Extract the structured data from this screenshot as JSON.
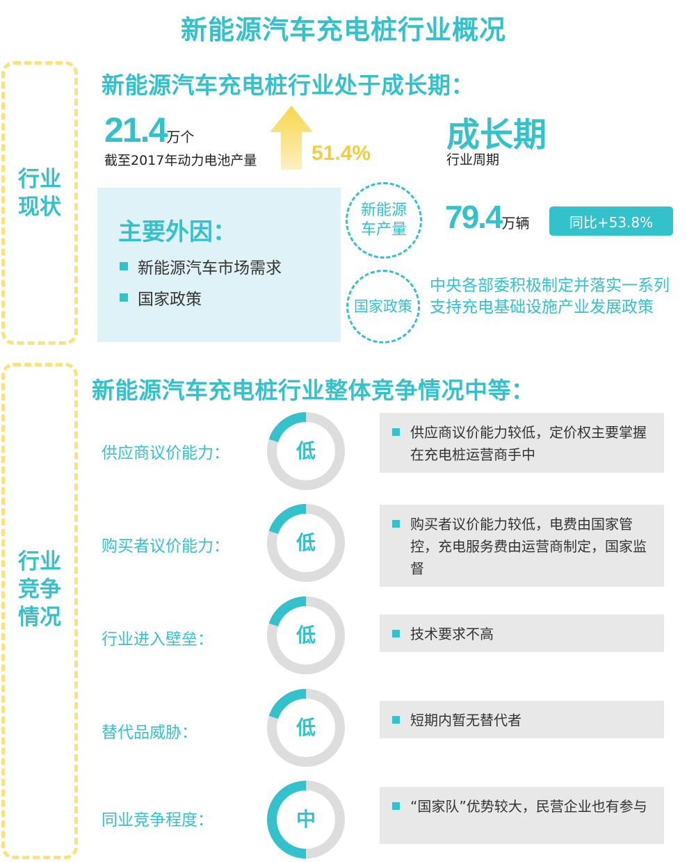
{
  "title": "新能源汽车充电桩行业概况",
  "status": {
    "side_label": "行业\n现状",
    "heading": "新能源汽车充电桩行业处于成长期：",
    "battery": {
      "value": "21.4",
      "unit": "万个",
      "caption": "截至2017年动力电池产量"
    },
    "growth_pct": "51.4%",
    "stage": {
      "value": "成长期",
      "caption": "行业周期"
    },
    "factors": {
      "title": "主要外因：",
      "items": [
        "新能源汽车市场需求",
        "国家政策"
      ]
    },
    "production": {
      "circle": "新能源\n车产量",
      "value": "79.4",
      "unit": "万辆",
      "badge": "同比+53.8%"
    },
    "policy": {
      "circle": "国家政策",
      "text": "中央各部委积极制定并落实一系列支持充电基础设施产业发展政策"
    }
  },
  "competition": {
    "side_label": "行业\n竞争\n情况",
    "heading": "新能源汽车充电桩行业整体竞争情况中等：",
    "rows": [
      {
        "label": "供应商议价能力：",
        "level": "低",
        "fill": 0.2,
        "desc": "供应商议价能力较低，定价权主要掌握在充电桩运营商手中"
      },
      {
        "label": "购买者议价能力：",
        "level": "低",
        "fill": 0.2,
        "desc": "购买者议价能力较低，电费由国家管控，充电服务费由运营商制定，国家监督"
      },
      {
        "label": "行业进入壁垒：",
        "level": "低",
        "fill": 0.2,
        "desc": "技术要求不高"
      },
      {
        "label": "替代品威胁：",
        "level": "低",
        "fill": 0.2,
        "desc": "短期内暂无替代者"
      },
      {
        "label": "同业竞争程度：",
        "level": "中",
        "fill": 0.5,
        "desc": "“国家队”优势较大，民营企业也有参与"
      }
    ]
  },
  "colors": {
    "accent": "#33c1cc",
    "yellow": "#f5cc3c",
    "dash": "#fbe27a",
    "ring_bg": "#dddddd",
    "desc_bg": "#e8e8e8",
    "factor_bg": "#dff2f7"
  }
}
